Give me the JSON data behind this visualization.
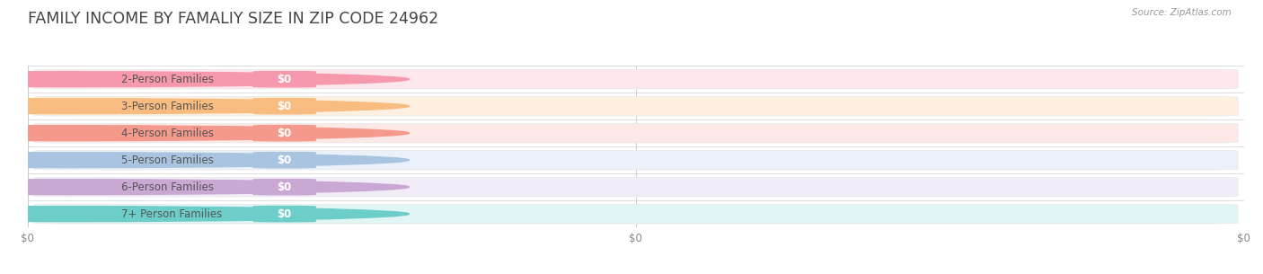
{
  "title": "FAMILY INCOME BY FAMALIY SIZE IN ZIP CODE 24962",
  "source": "Source: ZipAtlas.com",
  "categories": [
    "2-Person Families",
    "3-Person Families",
    "4-Person Families",
    "5-Person Families",
    "6-Person Families",
    "7+ Person Families"
  ],
  "values": [
    0,
    0,
    0,
    0,
    0,
    0
  ],
  "bar_colors": [
    "#F799AC",
    "#F9BC80",
    "#F4998C",
    "#A8C4E0",
    "#C9A8D4",
    "#6DCDC8"
  ],
  "bg_colors": [
    "#FCE8EC",
    "#FDF0E0",
    "#FCE8E6",
    "#EAF1F8",
    "#F2ECF8",
    "#E0F5F4"
  ],
  "label_color": "#555555",
  "value_label": "$0",
  "title_fontsize": 12.5,
  "label_fontsize": 8.5,
  "value_fontsize": 8.5,
  "background_color": "#ffffff",
  "xtick_labels": [
    "$0",
    "$0",
    "$0"
  ],
  "xtick_positions": [
    0.0,
    0.5,
    1.0
  ]
}
